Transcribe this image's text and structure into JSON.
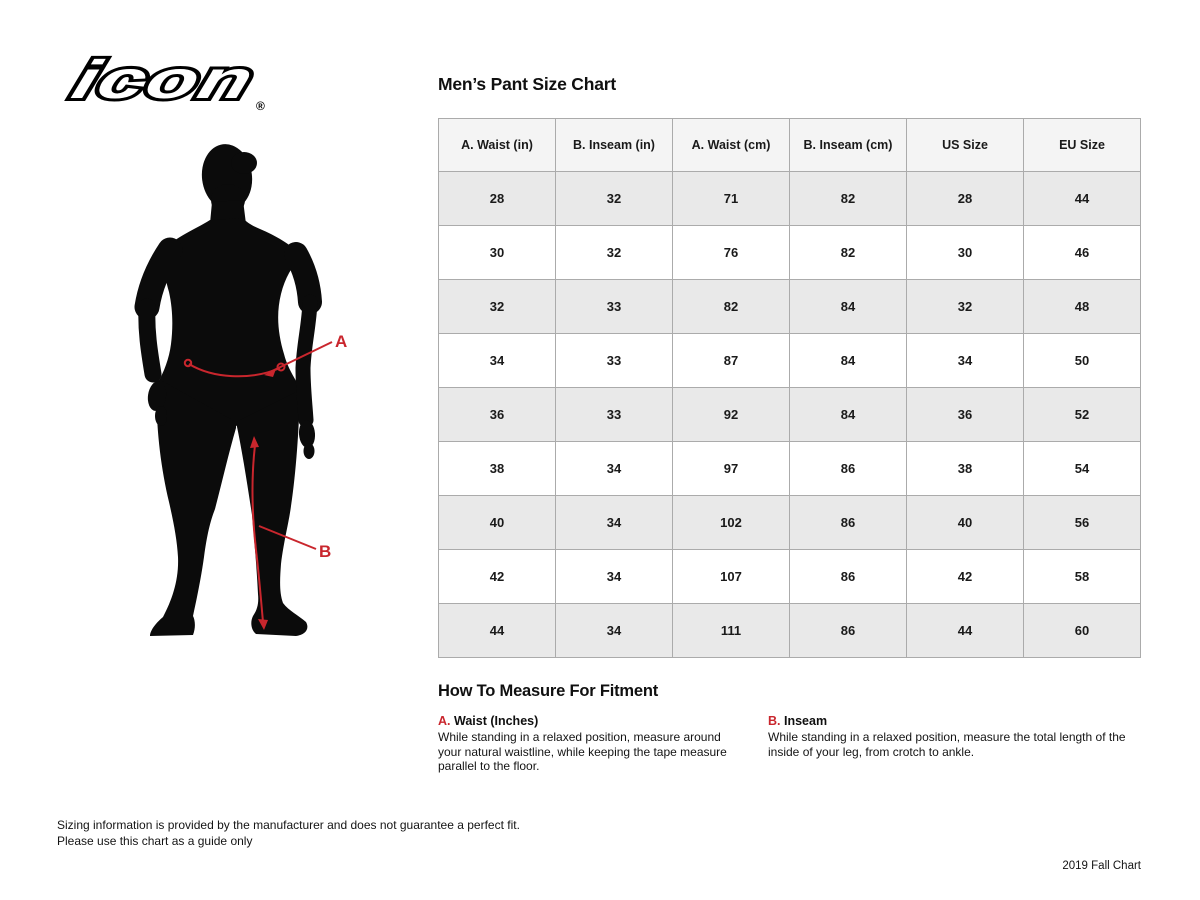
{
  "brand": {
    "logo_text": "icon",
    "registered_mark": "®"
  },
  "figure": {
    "label_a": "A",
    "label_b": "B",
    "annotation_color": "#c9262d",
    "silhouette_color": "#0b0b0b"
  },
  "size_chart": {
    "title": "Men’s Pant Size Chart",
    "columns": [
      "A. Waist (in)",
      "B. Inseam (in)",
      "A. Waist (cm)",
      "B. Inseam (cm)",
      "US Size",
      "EU Size"
    ],
    "rows": [
      [
        "28",
        "32",
        "71",
        "82",
        "28",
        "44"
      ],
      [
        "30",
        "32",
        "76",
        "82",
        "30",
        "46"
      ],
      [
        "32",
        "33",
        "82",
        "84",
        "32",
        "48"
      ],
      [
        "34",
        "33",
        "87",
        "84",
        "34",
        "50"
      ],
      [
        "36",
        "33",
        "92",
        "84",
        "36",
        "52"
      ],
      [
        "38",
        "34",
        "97",
        "86",
        "38",
        "54"
      ],
      [
        "40",
        "34",
        "102",
        "86",
        "40",
        "56"
      ],
      [
        "42",
        "34",
        "107",
        "86",
        "42",
        "58"
      ],
      [
        "44",
        "34",
        "111",
        "86",
        "44",
        "60"
      ]
    ]
  },
  "how_to_measure": {
    "heading": "How To Measure For Fitment",
    "items": [
      {
        "letter": "A.",
        "name": "Waist (Inches)",
        "description": "While standing in a relaxed position, measure around your natural waistline, while keeping the tape measure parallel to the floor."
      },
      {
        "letter": "B.",
        "name": "Inseam",
        "description": "While standing in a relaxed position, measure the total length of the inside of your leg, from crotch to ankle."
      }
    ]
  },
  "footer": {
    "disclaimer_line1": "Sizing information is provided by the manufacturer and does not guarantee a perfect fit.",
    "disclaimer_line2": "Please use this chart as a guide only",
    "chart_version": "2019 Fall Chart"
  },
  "chart_data": {
    "type": "table",
    "title": "Men’s Pant Size Chart",
    "columns": [
      "A. Waist (in)",
      "B. Inseam (in)",
      "A. Waist (cm)",
      "B. Inseam (cm)",
      "US Size",
      "EU Size"
    ],
    "rows": [
      [
        28,
        32,
        71,
        82,
        28,
        44
      ],
      [
        30,
        32,
        76,
        82,
        30,
        46
      ],
      [
        32,
        33,
        82,
        84,
        32,
        48
      ],
      [
        34,
        33,
        87,
        84,
        34,
        50
      ],
      [
        36,
        33,
        92,
        84,
        36,
        52
      ],
      [
        38,
        34,
        97,
        86,
        38,
        54
      ],
      [
        40,
        34,
        102,
        86,
        40,
        56
      ],
      [
        42,
        34,
        107,
        86,
        42,
        58
      ],
      [
        44,
        34,
        111,
        86,
        44,
        60
      ]
    ]
  }
}
